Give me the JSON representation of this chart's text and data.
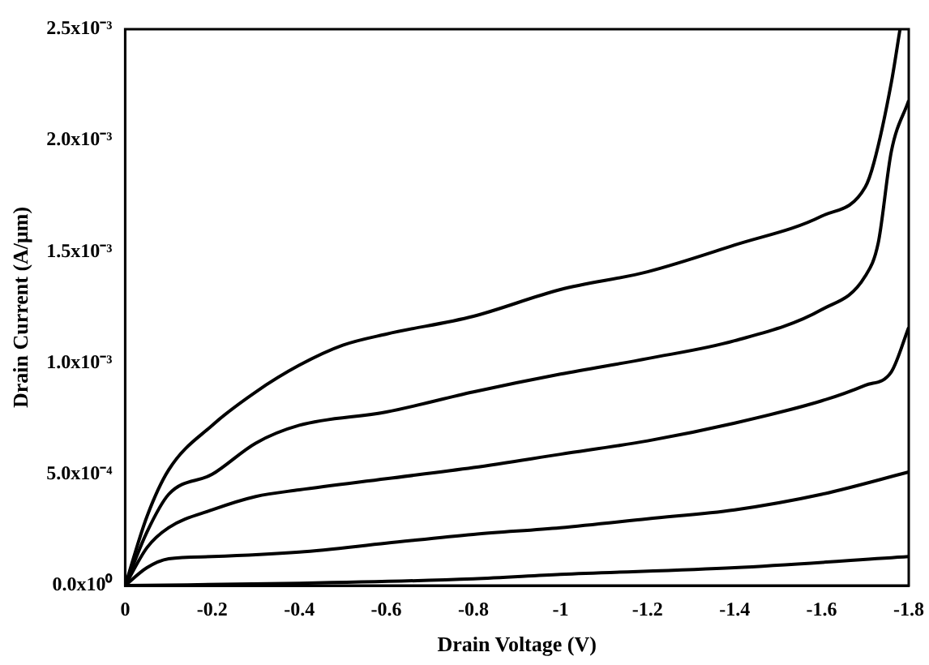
{
  "chart_data": {
    "type": "line",
    "xlabel": "Drain Voltage (V)",
    "ylabel": "Drain Current (A/μm)",
    "xlim": [
      0,
      -1.8
    ],
    "xticks": [
      0,
      -0.2,
      -0.4,
      -0.6,
      -0.8,
      -1,
      -1.2,
      -1.4,
      -1.6,
      -1.8
    ],
    "ylim": [
      0,
      0.0025
    ],
    "yticks": [
      {
        "value": 0,
        "label": "0.0x10⁰"
      },
      {
        "value": 0.0005,
        "label": "5.0x10⁻⁴"
      },
      {
        "value": 0.001,
        "label": "1.0x10⁻³"
      },
      {
        "value": 0.0015,
        "label": "1.5x10⁻³"
      },
      {
        "value": 0.002,
        "label": "2.0x10⁻³"
      },
      {
        "value": 0.0025,
        "label": "2.5x10⁻³"
      }
    ],
    "grid": false,
    "legend": false,
    "line_style": "solid",
    "series": [
      {
        "color": "#000000",
        "x": [
          0,
          -0.05,
          -0.1,
          -0.2,
          -0.3,
          -0.4,
          -0.5,
          -0.6,
          -0.8,
          -1,
          -1.2,
          -1.4,
          -1.6,
          -1.7,
          -1.72,
          -1.76,
          -1.78
        ],
        "values": [
          0,
          0.00031,
          0.00052,
          0.00072,
          0.00087,
          0.00099,
          0.00108,
          0.00113,
          0.00121,
          0.00133,
          0.00141,
          0.00153,
          0.00166,
          0.00179,
          0.0019,
          0.00226,
          0.0025
        ]
      },
      {
        "color": "#000000",
        "x": [
          0,
          -0.05,
          -0.1,
          -0.2,
          -0.3,
          -0.4,
          -0.6,
          -0.8,
          -1,
          -1.2,
          -1.4,
          -1.6,
          -1.7,
          -1.73,
          -1.76,
          -1.8
        ],
        "values": [
          0,
          0.00024,
          0.00041,
          0.0005,
          0.00064,
          0.00072,
          0.00078,
          0.00087,
          0.00095,
          0.00102,
          0.0011,
          0.00124,
          0.00139,
          0.00154,
          0.00195,
          0.00218
        ]
      },
      {
        "color": "#000000",
        "x": [
          0,
          -0.05,
          -0.1,
          -0.2,
          -0.3,
          -0.4,
          -0.6,
          -0.8,
          -1,
          -1.2,
          -1.4,
          -1.6,
          -1.7,
          -1.76,
          -1.8
        ],
        "values": [
          0,
          0.00017,
          0.00026,
          0.00034,
          0.0004,
          0.00043,
          0.00048,
          0.00053,
          0.00059,
          0.00065,
          0.00073,
          0.00083,
          0.0009,
          0.00096,
          0.00116
        ]
      },
      {
        "color": "#000000",
        "x": [
          0,
          -0.05,
          -0.1,
          -0.2,
          -0.4,
          -0.6,
          -0.8,
          -1,
          -1.2,
          -1.4,
          -1.6,
          -1.8
        ],
        "values": [
          0,
          8e-05,
          0.00012,
          0.00013,
          0.00015,
          0.00019,
          0.00023,
          0.00026,
          0.0003,
          0.00034,
          0.00041,
          0.00051
        ]
      },
      {
        "color": "#000000",
        "x": [
          0,
          -0.4,
          -0.8,
          -1,
          -1.4,
          -1.8
        ],
        "values": [
          0,
          1e-05,
          3e-05,
          5e-05,
          8e-05,
          0.00013
        ]
      }
    ]
  }
}
